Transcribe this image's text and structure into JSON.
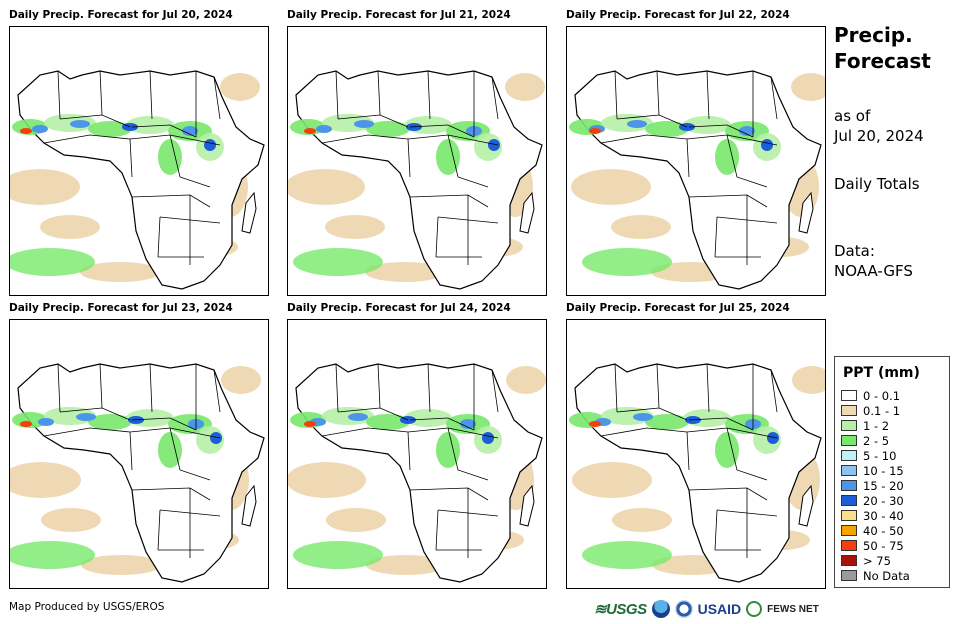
{
  "panels": [
    {
      "title": "Daily Precip. Forecast for Jul 20, 2024"
    },
    {
      "title": "Daily Precip. Forecast for Jul 21, 2024"
    },
    {
      "title": "Daily Precip. Forecast for Jul 22, 2024"
    },
    {
      "title": "Daily Precip. Forecast for Jul 23, 2024"
    },
    {
      "title": "Daily Precip. Forecast for Jul 24, 2024"
    },
    {
      "title": "Daily Precip. Forecast for Jul 25, 2024"
    }
  ],
  "side": {
    "title_line1": "Precip.",
    "title_line2": "Forecast",
    "asof_line1": "as of",
    "asof_line2": "Jul 20, 2024",
    "totals": "Daily Totals",
    "data_line1": "Data:",
    "data_line2": "NOAA-GFS"
  },
  "legend": {
    "title": "PPT (mm)",
    "items": [
      {
        "label": "0 - 0.1",
        "color": "#ffffff"
      },
      {
        "label": "0.1 - 1",
        "color": "#efd9b4"
      },
      {
        "label": "1 - 2",
        "color": "#b6f0a6"
      },
      {
        "label": "2 - 5",
        "color": "#78e86a"
      },
      {
        "label": "5 - 10",
        "color": "#bdf2f7"
      },
      {
        "label": "10 - 15",
        "color": "#8ec0f2"
      },
      {
        "label": "15 - 20",
        "color": "#4c95e8"
      },
      {
        "label": "20 - 30",
        "color": "#1c5ed8"
      },
      {
        "label": "30 - 40",
        "color": "#f7e08a"
      },
      {
        "label": "40 - 50",
        "color": "#f5a300"
      },
      {
        "label": "50 - 75",
        "color": "#f43f0c"
      },
      {
        "label": "> 75",
        "color": "#a8120c"
      },
      {
        "label": "No Data",
        "color": "#9a9a9a"
      }
    ]
  },
  "footer": {
    "credit": "Map Produced by USGS/EROS",
    "logo_usgs": "≋USGS",
    "logo_usaid": "USAID",
    "logo_fews": "FEWS NET"
  }
}
